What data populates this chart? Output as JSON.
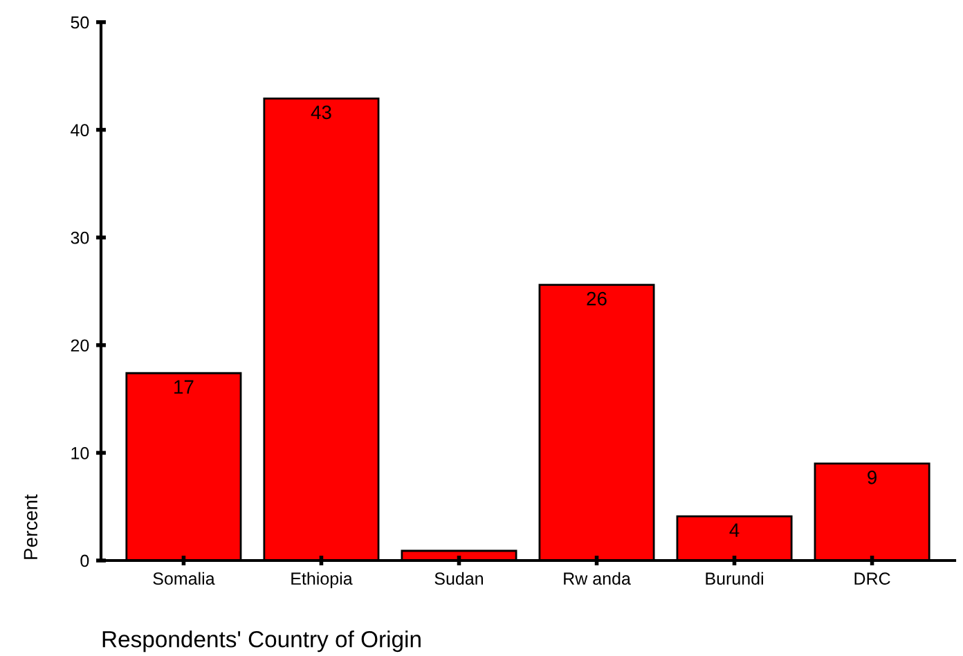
{
  "chart_data": {
    "type": "bar",
    "xlabel": "Respondents' Country of Origin",
    "ylabel": "Percent",
    "categories": [
      "Somalia",
      "Ethiopia",
      "Sudan",
      "Rw anda",
      "Burundi",
      "DRC"
    ],
    "values": [
      17.4,
      42.9,
      0.9,
      25.6,
      4.1,
      9.0
    ],
    "value_labels": [
      "17",
      "43",
      null,
      "26",
      "4",
      "9"
    ],
    "color": "#ff0000",
    "ylim": [
      0,
      50
    ],
    "yticks": [
      0,
      10,
      20,
      30,
      40,
      50
    ],
    "grid": false,
    "legend": false
  }
}
